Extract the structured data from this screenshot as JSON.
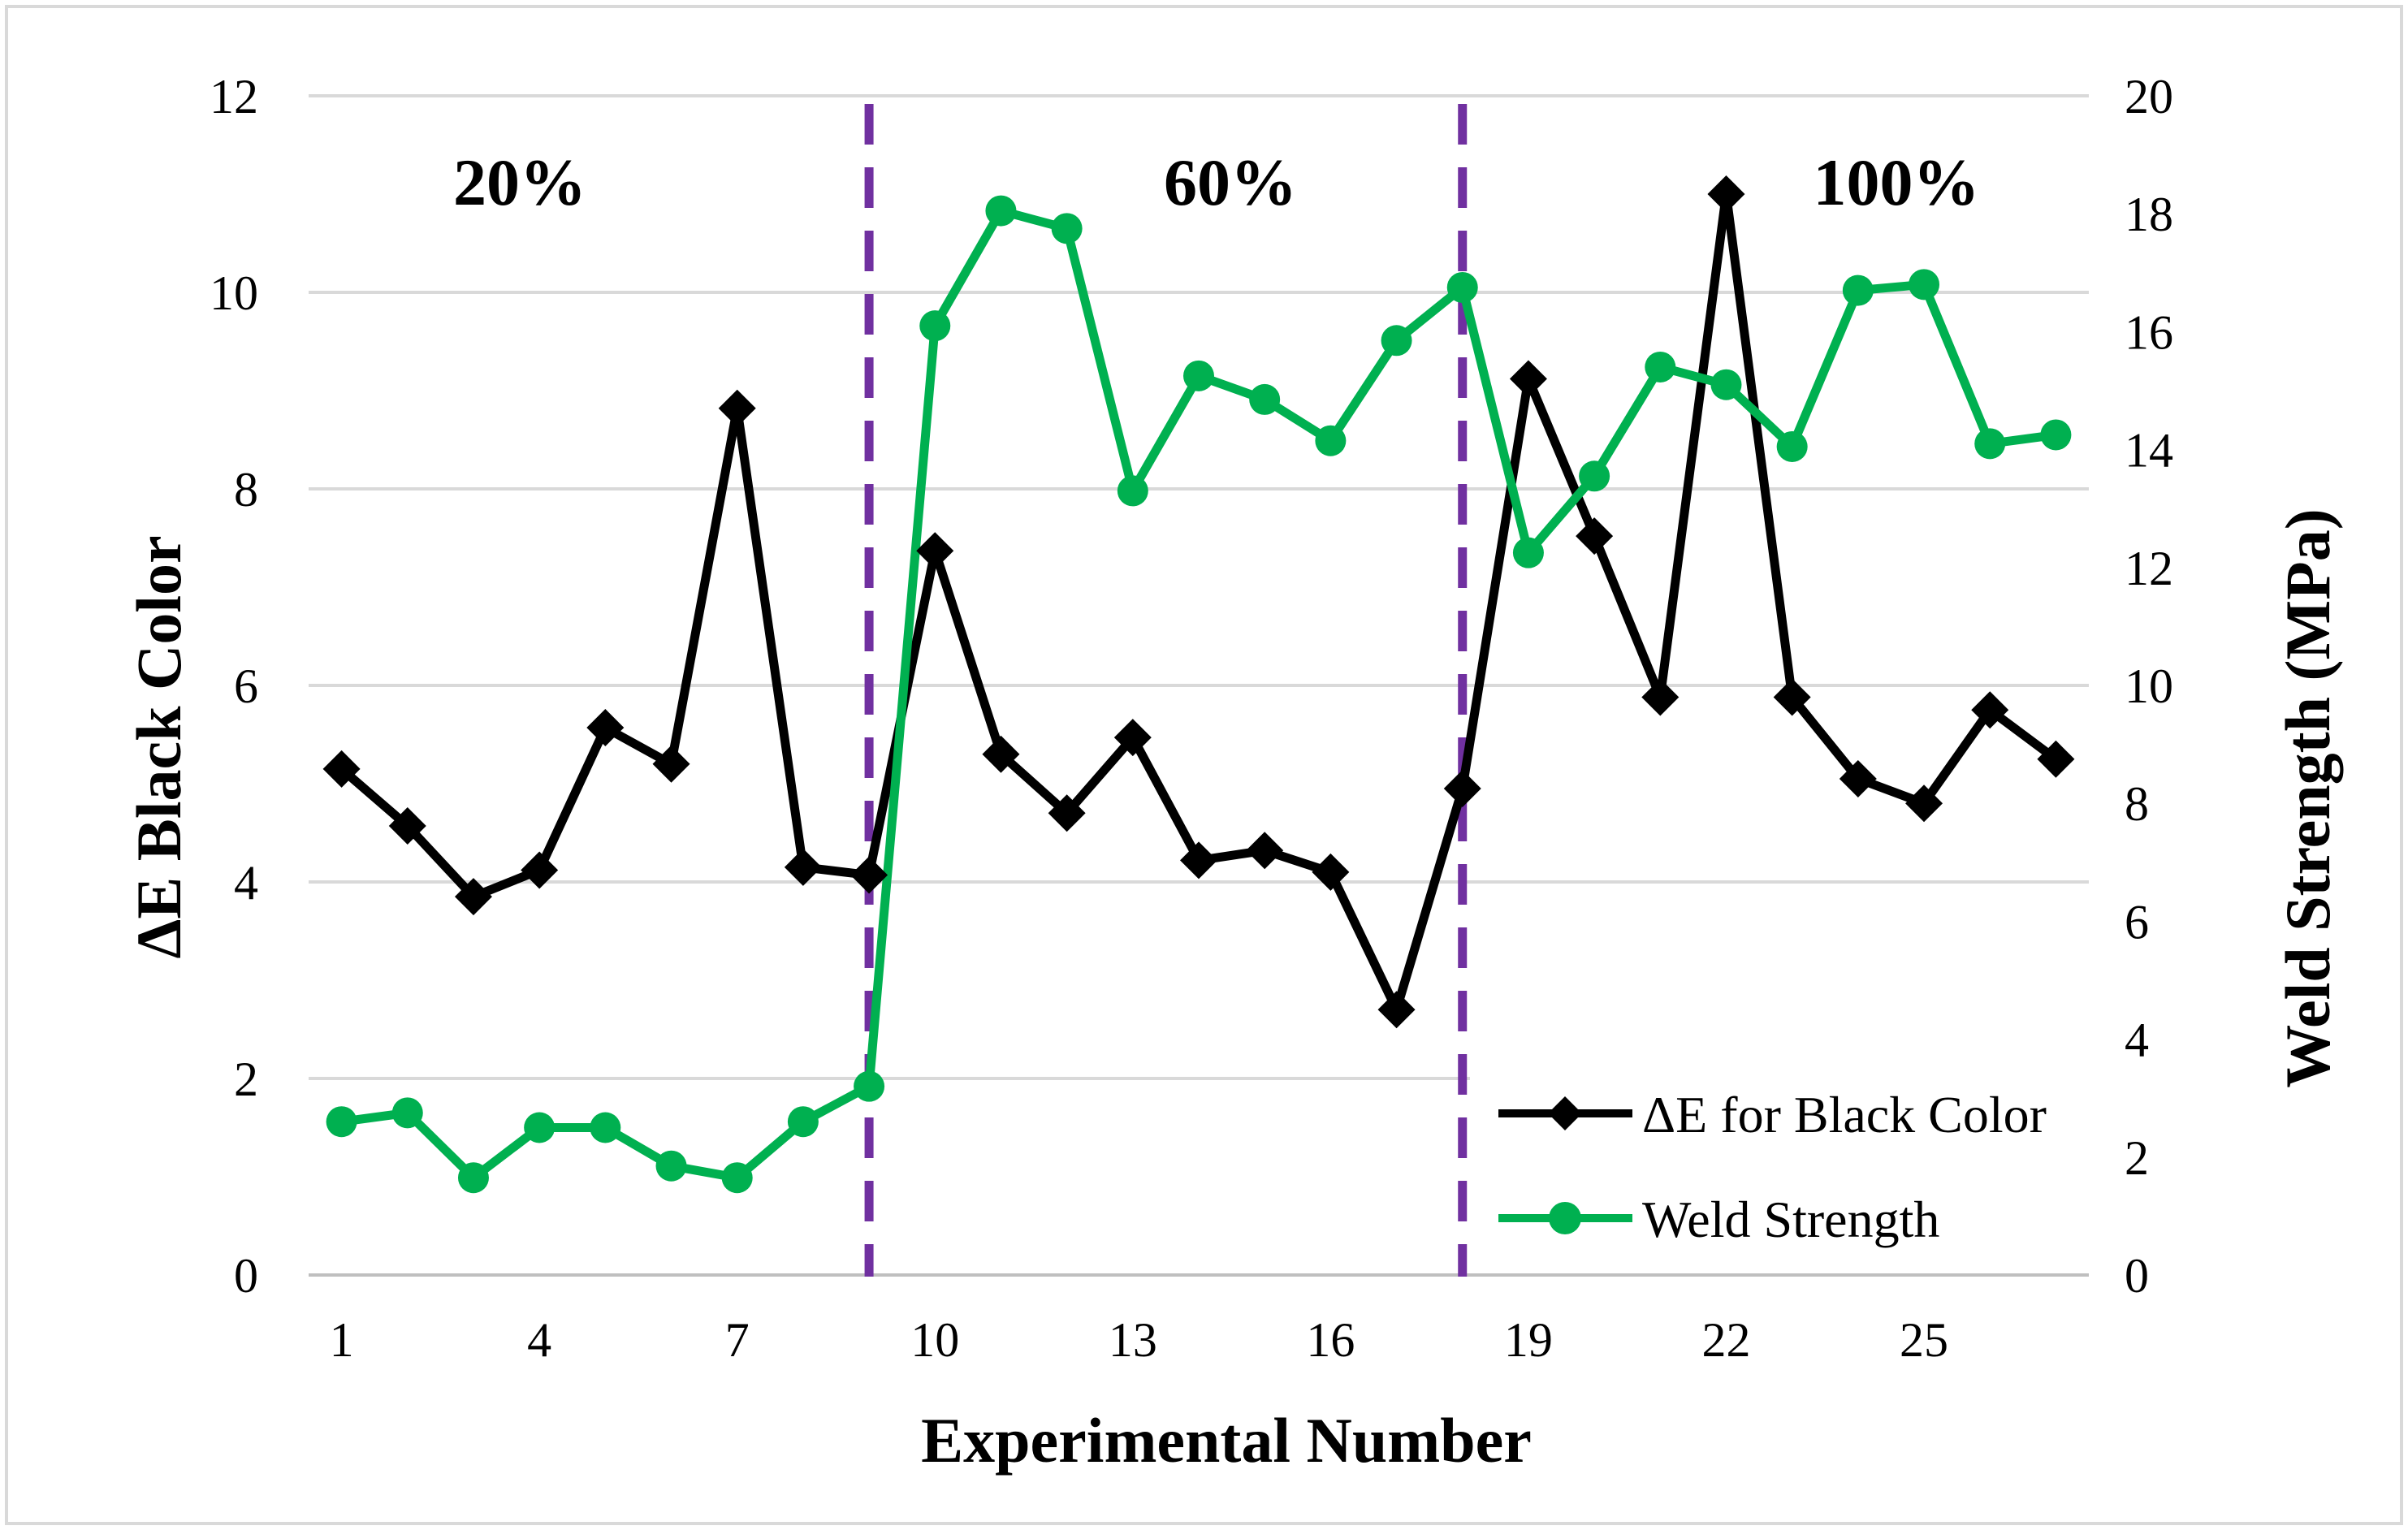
{
  "chart_data": {
    "type": "line",
    "title": "",
    "xlabel": "Experimental Number",
    "ylabel_left": "ΔE Black Color",
    "ylabel_right": "Weld Strength (MPa)",
    "x": [
      1,
      2,
      3,
      4,
      5,
      6,
      7,
      8,
      9,
      10,
      11,
      12,
      13,
      14,
      15,
      16,
      17,
      18,
      19,
      20,
      21,
      22,
      23,
      24,
      25,
      26,
      27
    ],
    "x_ticks": [
      1,
      4,
      7,
      10,
      13,
      16,
      19,
      22,
      25
    ],
    "ylim_left": [
      0,
      12
    ],
    "yticks_left": [
      0,
      2,
      4,
      6,
      8,
      10,
      12
    ],
    "ylim_right": [
      0,
      20
    ],
    "yticks_right": [
      0,
      2,
      4,
      6,
      8,
      10,
      12,
      14,
      16,
      18,
      20
    ],
    "grid": true,
    "series": [
      {
        "name": "ΔE for Black Color",
        "axis": "left",
        "color": "#000000",
        "marker": "diamond",
        "values": [
          5.15,
          4.57,
          3.85,
          4.12,
          5.57,
          5.2,
          8.82,
          4.15,
          4.07,
          7.37,
          5.3,
          4.7,
          5.47,
          4.22,
          4.32,
          4.1,
          2.7,
          4.95,
          9.12,
          7.52,
          5.88,
          11.0,
          5.88,
          5.05,
          4.8,
          5.75,
          5.25
        ]
      },
      {
        "name": "Weld Strength",
        "axis": "right",
        "color": "#00b050",
        "marker": "circle",
        "values": [
          2.6,
          2.75,
          1.65,
          2.5,
          2.5,
          1.85,
          1.65,
          2.6,
          3.2,
          16.1,
          18.05,
          17.75,
          13.3,
          15.25,
          14.85,
          14.15,
          15.85,
          16.75,
          12.25,
          13.55,
          15.4,
          15.1,
          14.05,
          16.7,
          16.8,
          14.1,
          14.25
        ]
      }
    ],
    "separators": {
      "color": "#7030a0",
      "style": "dashed",
      "x_positions": [
        9,
        18
      ]
    },
    "annotations": [
      "20%",
      "60%",
      "100%"
    ],
    "legend_position": "bottom-right"
  }
}
